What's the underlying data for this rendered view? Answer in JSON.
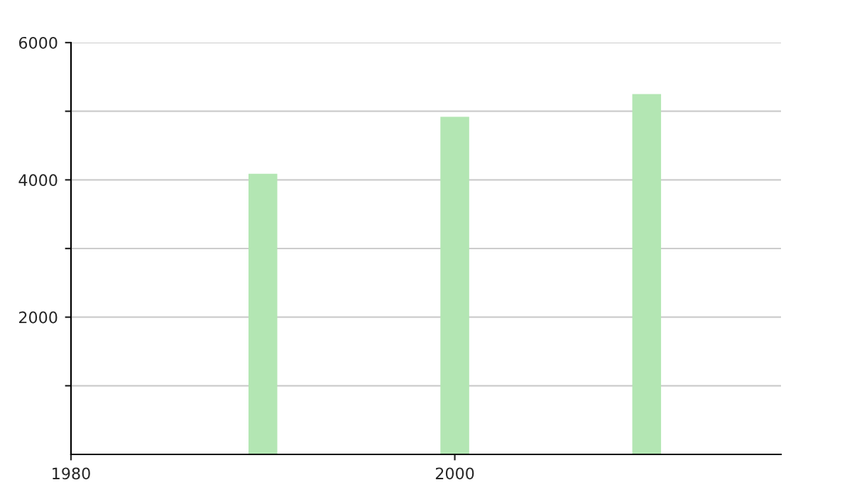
{
  "chart_data": {
    "type": "bar",
    "x": [
      1990,
      2000,
      2010
    ],
    "values": [
      4090,
      4920,
      5250
    ],
    "color": "#b3e6b3",
    "xlim": [
      1980,
      2017
    ],
    "xticks": [
      1980,
      2000
    ],
    "ylim": [
      0,
      6000
    ],
    "yticks": [
      {
        "value": 1000,
        "label": null
      },
      2000,
      {
        "value": 3000,
        "label": null
      },
      4000,
      {
        "value": 5000,
        "label": null
      },
      6000
    ],
    "grid": "y"
  }
}
